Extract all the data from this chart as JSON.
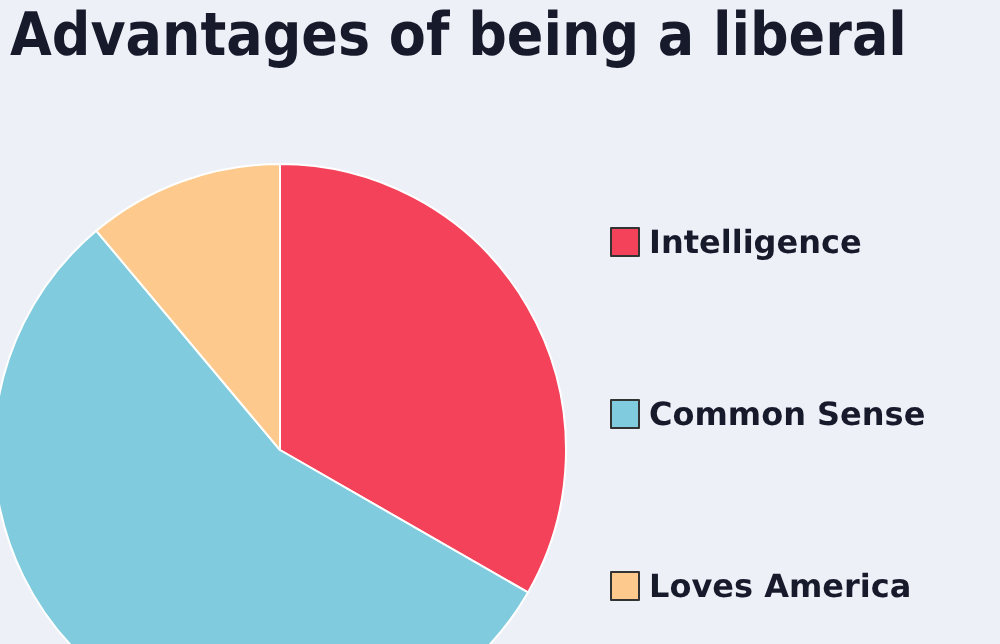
{
  "chart_data": {
    "type": "pie",
    "title": "Advantages of being a liberal",
    "categories": [
      "Intelligence",
      "Common Sense",
      "Loves America"
    ],
    "values": [
      33.3,
      55.6,
      11.1
    ],
    "colors": [
      "#f4425a",
      "#80cbdd",
      "#fdc98c"
    ],
    "legend": "right"
  }
}
